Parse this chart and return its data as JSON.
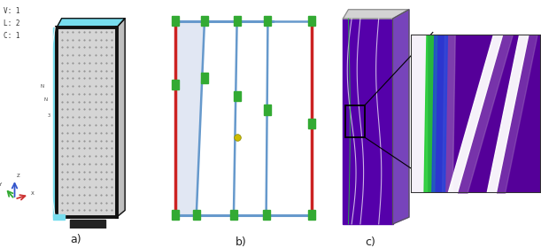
{
  "fig_width": 6.11,
  "fig_height": 2.8,
  "dpi": 100,
  "bg_color": "#ffffff",
  "label_a": "a)",
  "label_b": "b)",
  "label_c": "c)",
  "legend_text": [
    "V: 1",
    "L: 2",
    "C: 1"
  ],
  "panel_a": {
    "mesh_color": "#c0c0c0",
    "frame_color": "#111111",
    "cyan_color": "#66ddee",
    "side_color": "#999999",
    "base_color": "#222222",
    "white_line": "#ffffff",
    "dot_color": "#888888"
  },
  "panel_b": {
    "col_red": "#cc2222",
    "col_blue": "#6699cc",
    "col_blue_fill": "#aabbdd",
    "col_green": "#33aa33",
    "col_yellow": "#ccbb00"
  },
  "panel_c": {
    "purple": "#5500aa",
    "purple_light": "#7733cc",
    "white": "#ffffff",
    "green": "#22cc33",
    "blue": "#2233ee",
    "lavender": "#aa88cc",
    "gray_top": "#cccccc"
  },
  "inset": {
    "purple_dark": "#4400aa",
    "purple_bg": "#550099",
    "white": "#ffffff",
    "green": "#22cc33",
    "blue": "#2244dd",
    "lavender": "#9966bb"
  }
}
